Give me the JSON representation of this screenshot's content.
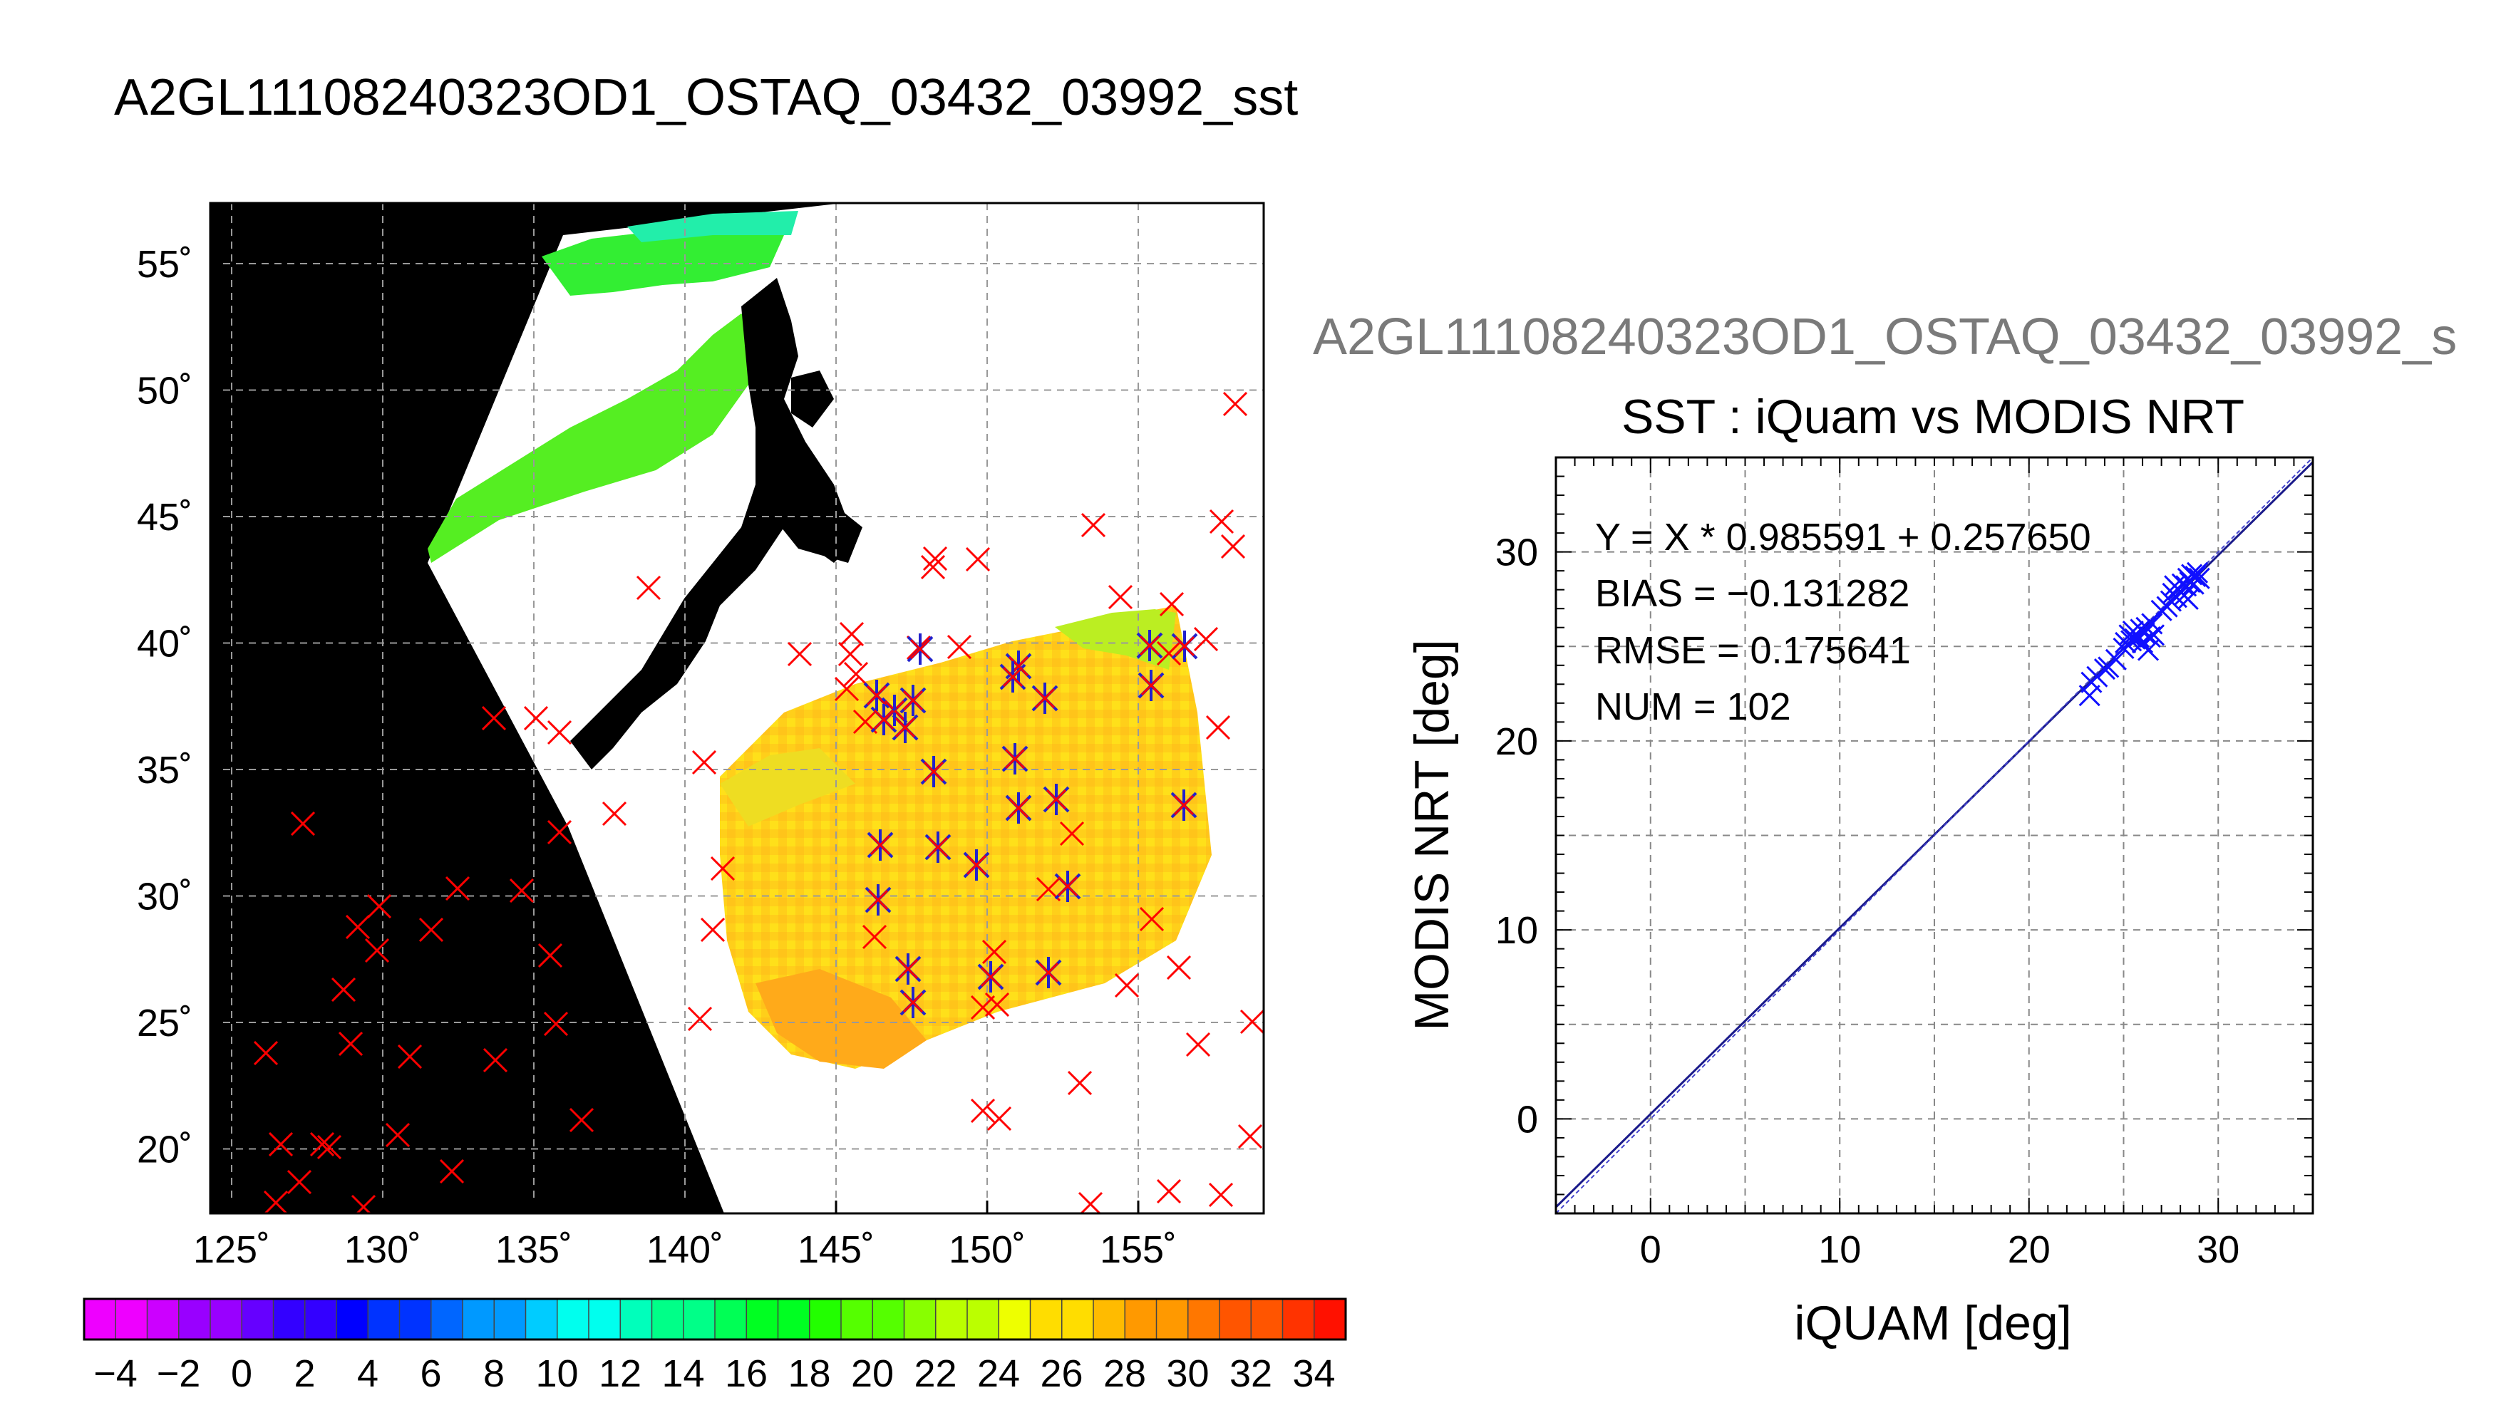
{
  "titles": {
    "main": "A2GL11108240323OD1_OSTAQ_03432_03992_sst",
    "right_plot": "A2GL11108240323OD1_OSTAQ_03432_03992_s"
  },
  "map": {
    "lon_ticks": [
      "125˚",
      "130˚",
      "135˚",
      "140˚",
      "145˚",
      "150˚",
      "155˚"
    ],
    "lat_ticks": [
      "55˚",
      "50˚",
      "45˚",
      "40˚",
      "35˚",
      "30˚",
      "25˚",
      "20˚"
    ],
    "colorbar_ticks": [
      "−4",
      "−2",
      "0",
      "2",
      "4",
      "6",
      "8",
      "10",
      "12",
      "14",
      "16",
      "18",
      "20",
      "22",
      "24",
      "26",
      "28",
      "30",
      "32",
      "34"
    ],
    "colors": {
      "land_background": "#000000",
      "swath_no_data": "#ffffff",
      "iquam_marker": "#ff0000",
      "matched_marker": "#2222cc"
    }
  },
  "chart_data": {
    "type": "scatter",
    "title": "SST : iQuam vs MODIS NRT",
    "xlabel": "iQUAM [deg]",
    "ylabel": "MODIS NRT [deg]",
    "xlim": [
      -5,
      35
    ],
    "ylim": [
      -5,
      35
    ],
    "x_ticks": [
      "0",
      "10",
      "20",
      "30"
    ],
    "y_ticks": [
      "0",
      "10",
      "20",
      "30"
    ],
    "grid": true,
    "stats": {
      "fit": "Y = X * 0.985591 + 0.257650",
      "bias": "BIAS = −0.131282",
      "rmse": "RMSE = 0.175641",
      "num": "NUM = 102"
    },
    "fit_line": {
      "slope": 0.985591,
      "intercept": 0.25765
    },
    "marker_color": "#1010ff",
    "points": [
      [
        23.2,
        22.4
      ],
      [
        23.3,
        23.1
      ],
      [
        23.6,
        23.4
      ],
      [
        24.0,
        23.8
      ],
      [
        24.2,
        23.9
      ],
      [
        24.6,
        24.3
      ],
      [
        25.0,
        24.9
      ],
      [
        25.1,
        25.2
      ],
      [
        25.3,
        25.6
      ],
      [
        25.4,
        25.3
      ],
      [
        25.5,
        25.8
      ],
      [
        25.6,
        25.4
      ],
      [
        25.8,
        25.5
      ],
      [
        25.9,
        25.9
      ],
      [
        26.0,
        25.2
      ],
      [
        26.1,
        25.7
      ],
      [
        26.2,
        26.0
      ],
      [
        26.3,
        24.8
      ],
      [
        26.4,
        25.5
      ],
      [
        26.5,
        26.2
      ],
      [
        26.6,
        25.6
      ],
      [
        27.0,
        26.9
      ],
      [
        27.3,
        27.1
      ],
      [
        27.5,
        27.4
      ],
      [
        27.6,
        27.8
      ],
      [
        27.8,
        27.6
      ],
      [
        27.9,
        28.0
      ],
      [
        28.0,
        27.9
      ],
      [
        28.1,
        28.3
      ],
      [
        28.2,
        27.7
      ],
      [
        28.3,
        28.2
      ],
      [
        28.4,
        28.6
      ],
      [
        28.5,
        28.4
      ],
      [
        28.6,
        28.8
      ],
      [
        28.7,
        28.3
      ],
      [
        28.8,
        28.7
      ],
      [
        28.9,
        28.9
      ],
      [
        29.0,
        28.6
      ],
      [
        28.4,
        27.5
      ],
      [
        27.7,
        28.2
      ]
    ]
  }
}
